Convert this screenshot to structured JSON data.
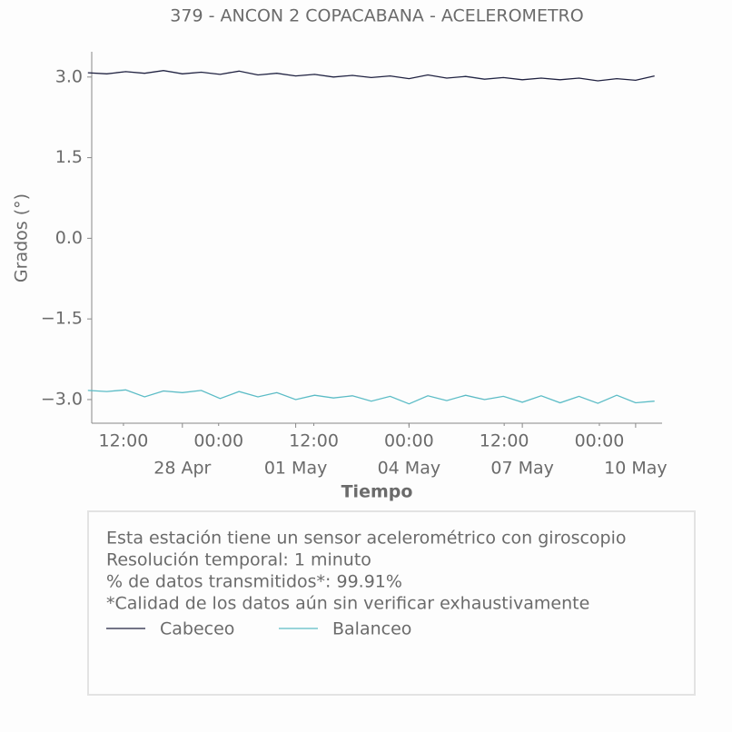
{
  "chart_data": {
    "type": "line",
    "title": "379 - ANCON 2 COPACABANA - ACELEROMETRO",
    "x_label": "Tiempo",
    "y_label": "Grados (°)",
    "x": [
      -2.5,
      -2,
      -1.5,
      -1,
      -0.5,
      0,
      0.5,
      1,
      1.5,
      2,
      2.5,
      3,
      3.5,
      4,
      4.5,
      5,
      5.5,
      6,
      6.5,
      7,
      7.5,
      8,
      8.5,
      9,
      9.5,
      10,
      10.5,
      11,
      11.5,
      12,
      12.5
    ],
    "series": [
      {
        "name": "Cabeceo",
        "color": "#1f2140",
        "values": [
          3.08,
          3.06,
          3.1,
          3.07,
          3.12,
          3.06,
          3.09,
          3.05,
          3.11,
          3.04,
          3.07,
          3.02,
          3.05,
          3.0,
          3.03,
          2.99,
          3.02,
          2.97,
          3.04,
          2.98,
          3.01,
          2.96,
          2.99,
          2.95,
          2.98,
          2.95,
          2.98,
          2.93,
          2.97,
          2.94,
          3.02
        ]
      },
      {
        "name": "Balanceo",
        "color": "#5bbcc6",
        "values": [
          -2.83,
          -2.85,
          -2.82,
          -2.95,
          -2.84,
          -2.87,
          -2.83,
          -2.98,
          -2.85,
          -2.95,
          -2.87,
          -3.0,
          -2.92,
          -2.97,
          -2.93,
          -3.03,
          -2.94,
          -3.08,
          -2.93,
          -3.02,
          -2.92,
          -3.0,
          -2.94,
          -3.05,
          -2.93,
          -3.06,
          -2.94,
          -3.07,
          -2.92,
          -3.06,
          -3.03
        ]
      }
    ],
    "xlim": [
      -2.4,
      12.7
    ],
    "xticks": [
      {
        "value": 0,
        "label": "28 Apr"
      },
      {
        "value": 3,
        "label": "01 May"
      },
      {
        "value": 6,
        "label": "04 May"
      },
      {
        "value": 9,
        "label": "07 May"
      },
      {
        "value": 12,
        "label": "10 May"
      }
    ],
    "xticks_minor": [
      {
        "value": -1.56,
        "label": "12:00"
      },
      {
        "value": 0.96,
        "label": "00:00"
      },
      {
        "value": 3.48,
        "label": "12:00"
      },
      {
        "value": 6.0,
        "label": "00:00"
      },
      {
        "value": 8.52,
        "label": "12:00"
      },
      {
        "value": 11.04,
        "label": "00:00"
      }
    ],
    "ylim": [
      -3.44,
      3.47
    ],
    "yticks": [
      {
        "value": 3.0,
        "label": "3.0"
      },
      {
        "value": 1.5,
        "label": "1.5"
      },
      {
        "value": 0,
        "label": "0.0"
      },
      {
        "value": -1.5,
        "label": "−1.5"
      },
      {
        "value": -3.0,
        "label": "−3.0"
      }
    ],
    "notes": [
      "Esta estación tiene un sensor acelerométrico con giroscopio",
      "Resolución temporal: 1 minuto",
      "% de datos transmitidos*: 99.91%",
      "*Calidad de los datos aún sin verificar exhaustivamente"
    ]
  }
}
